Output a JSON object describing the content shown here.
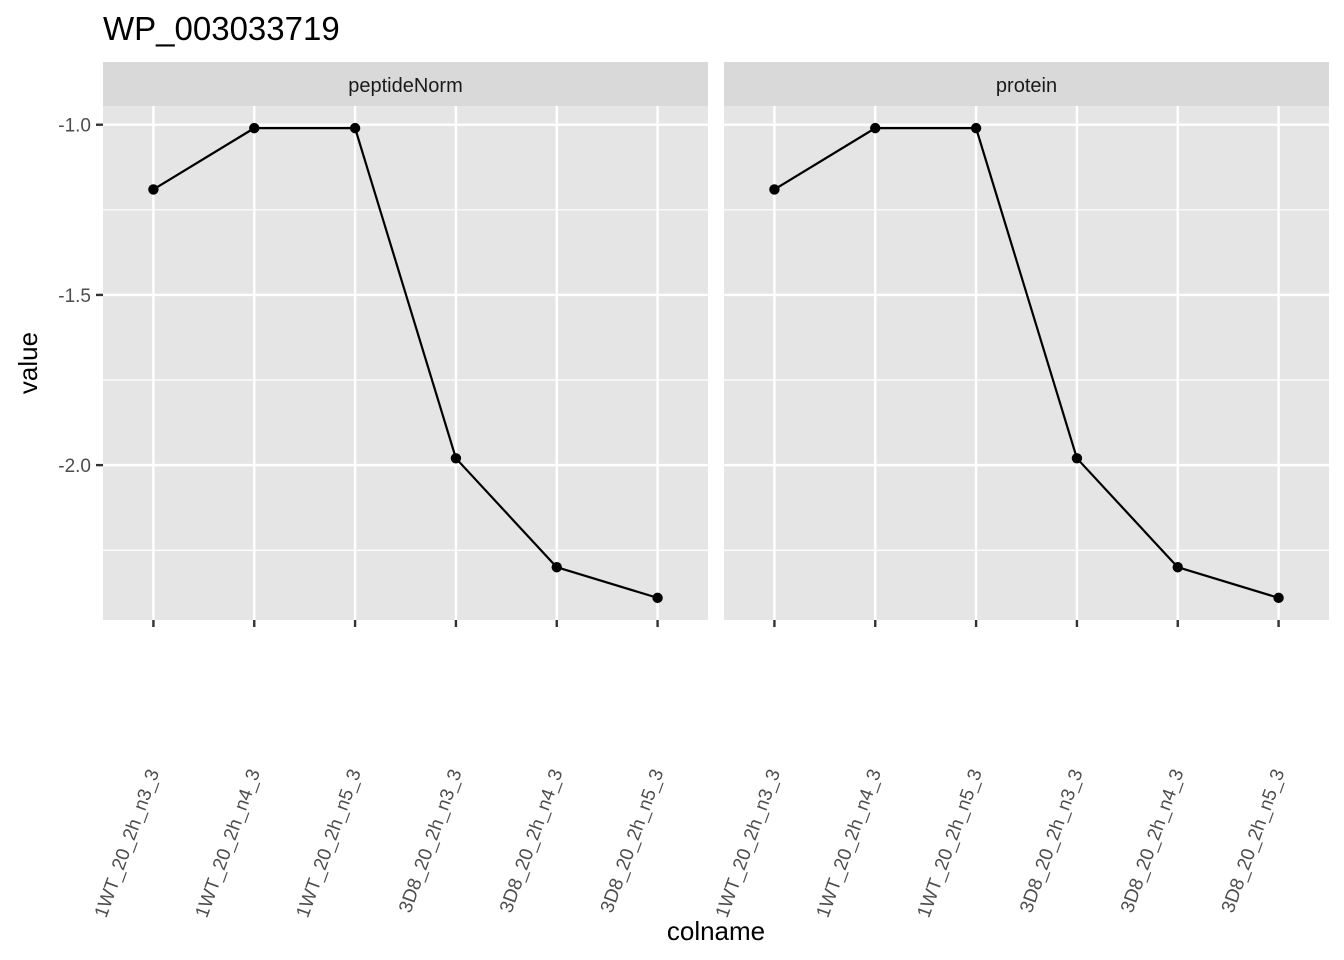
{
  "chart_data": {
    "type": "line",
    "title": "WP_003033719",
    "xlabel": "colname",
    "ylabel": "value",
    "facets": [
      "peptideNorm",
      "protein"
    ],
    "categories": [
      "1WT_20_2h_n3_3",
      "1WT_20_2h_n4_3",
      "1WT_20_2h_n5_3",
      "3D8_20_2h_n3_3",
      "3D8_20_2h_n4_3",
      "3D8_20_2h_n5_3"
    ],
    "series": [
      {
        "facet": "peptideNorm",
        "values": [
          -1.19,
          -1.01,
          -1.01,
          -1.98,
          -2.3,
          -2.39
        ]
      },
      {
        "facet": "protein",
        "values": [
          -1.19,
          -1.01,
          -1.01,
          -1.98,
          -2.3,
          -2.39
        ]
      }
    ],
    "yticks": [
      -1.0,
      -1.5,
      -2.0
    ],
    "ytick_labels": [
      "-1.0",
      "-1.5",
      "-2.0"
    ],
    "ylim": [
      -2.455,
      -0.945
    ],
    "grid": true,
    "legend": "none",
    "colors": {
      "panel_background": "#e5e5e5",
      "strip_background": "#d9d9d9",
      "gridline": "#ffffff",
      "line": "#000000",
      "point": "#000000",
      "tick_text": "#4d4d4d",
      "tick_mark": "#333333"
    }
  }
}
